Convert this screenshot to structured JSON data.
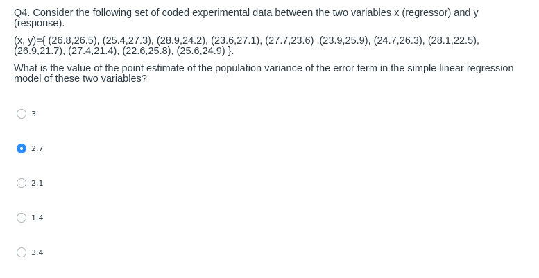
{
  "question": {
    "intro": "Q4.  Consider the following set of coded experimental data between the two variables x (regressor) and y (response).",
    "data_line": "(x, y)={ (26.8,26.5), (25.4,27.3), (28.9,24.2), (23.6,27.1), (27.7,23.6) ,(23.9,25.9), (24.7,26.3), (28.1,22.5), (26.9,21.7), (27.4,21.4), (22.6,25.8), (25.6,24.9) }.",
    "prompt": "What is the value of the point estimate of the population variance of the error term in the simple linear regression model of these two variables?"
  },
  "answers": [
    {
      "label": "3",
      "selected": false
    },
    {
      "label": "2.7",
      "selected": true
    },
    {
      "label": "2.1",
      "selected": false
    },
    {
      "label": "1.4",
      "selected": false
    },
    {
      "label": "3.4",
      "selected": false
    }
  ],
  "colors": {
    "text": "#2d3b45",
    "radio_border": "#aab4be",
    "radio_selected": "#2c8ef8"
  }
}
